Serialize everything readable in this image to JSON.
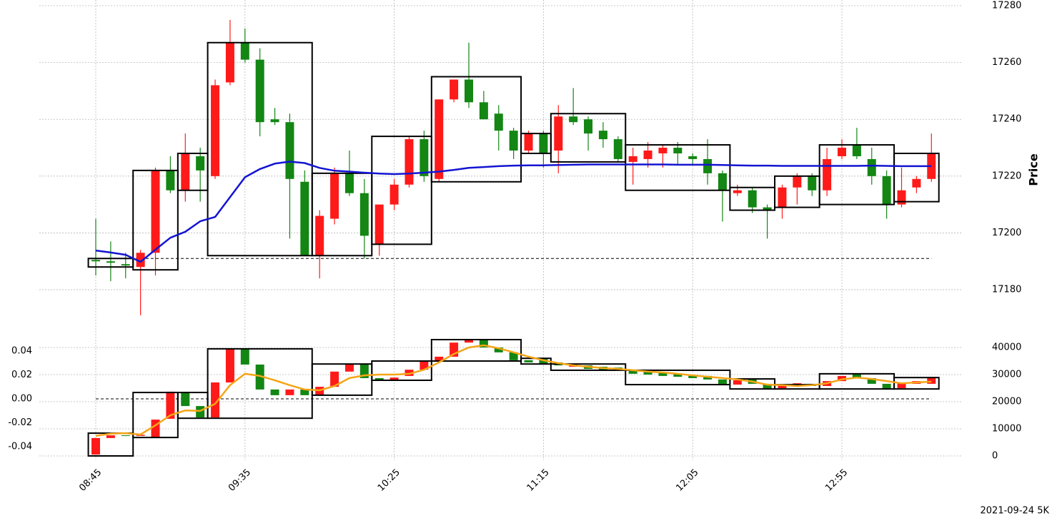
{
  "chart_data": [
    {
      "type": "candlestick",
      "ylabel": "Price",
      "up_color": "#ff1a1a",
      "down_color": "#138613",
      "box_color": "#000000",
      "ylim": [
        17167.7,
        17280
      ],
      "yticks": [
        17180,
        17200,
        17220,
        17240,
        17260,
        17280
      ],
      "grid": true,
      "open": [
        17190.5,
        17190,
        17189,
        17188,
        17193,
        17222,
        17215,
        17227,
        17220,
        17253,
        17267,
        17261,
        17240,
        17239,
        17218,
        17192,
        17205,
        17221,
        17214,
        17196,
        17210,
        17217,
        17233,
        17219,
        17247,
        17254,
        17246,
        17242,
        17236,
        17229,
        17235,
        17229,
        17241,
        17240,
        17236,
        17233,
        17225,
        17226,
        17228,
        17230,
        17227,
        17226,
        17221,
        17214,
        17215,
        17209,
        17209,
        17216,
        17220,
        17215,
        17227,
        17231,
        17226,
        17220,
        17210,
        17216,
        17219
      ],
      "high": [
        17205,
        17197,
        17193,
        17194,
        17223,
        17227,
        17235,
        17230,
        17254,
        17275,
        17272,
        17265,
        17244,
        17242,
        17222,
        17208,
        17223,
        17229,
        17219,
        17209,
        17219,
        17234,
        17236,
        17247,
        17254,
        17267,
        17250,
        17245,
        17237,
        17236,
        17236,
        17245,
        17251,
        17241,
        17239,
        17234,
        17230,
        17232,
        17231,
        17232,
        17228,
        17233,
        17222,
        17217,
        17216,
        17210,
        17217,
        17221,
        17221,
        17230,
        17233,
        17237,
        17230,
        17222,
        17223,
        17220,
        17235
      ],
      "low": [
        17185,
        17183,
        17184,
        17171,
        17185,
        17214,
        17211,
        17211,
        17219,
        17252,
        17260,
        17234,
        17238,
        17198,
        17192,
        17184,
        17203,
        17213,
        17191,
        17192,
        17208,
        17216,
        17218,
        17218,
        17246,
        17244,
        17240,
        17229,
        17226,
        17228,
        17223,
        17221,
        17238,
        17229,
        17230,
        17225,
        17217,
        17223,
        17223,
        17224,
        17224,
        17217,
        17204,
        17213,
        17207,
        17198,
        17205,
        17210,
        17213,
        17213,
        17226,
        17226,
        17217,
        17205,
        17209,
        17214,
        17218
      ],
      "close": [
        17190,
        17189.5,
        17188.5,
        17193,
        17222,
        17215,
        17228,
        17222,
        17252,
        17267,
        17261,
        17239,
        17239,
        17219,
        17192,
        17206,
        17221,
        17214,
        17199,
        17210,
        17217,
        17233,
        17220,
        17247,
        17254,
        17246,
        17240,
        17236,
        17229,
        17235,
        17228,
        17241,
        17239,
        17235,
        17233,
        17226,
        17227,
        17229,
        17230,
        17228,
        17226,
        17221,
        17215,
        17215,
        17209,
        17208,
        17216,
        17220,
        17215,
        17226,
        17230,
        17227,
        17220,
        17210,
        17215,
        17219,
        17228
      ],
      "lines": [
        {
          "color": "#1414d2",
          "values": [
            17193.8,
            17193.1,
            17192.3,
            17189.8,
            17194.1,
            17198.3,
            17200.4,
            17204.1,
            17205.6,
            17212.6,
            17219.6,
            17222.5,
            17224.4,
            17225.1,
            17224.6,
            17222.9,
            17221.9,
            17221.6,
            17221.2,
            17220.9,
            17220.7,
            17220.9,
            17221.2,
            17221.6,
            17222.2,
            17222.9,
            17223.2,
            17223.5,
            17223.7,
            17223.8,
            17223.8,
            17223.9,
            17224,
            17224.1,
            17224.1,
            17224.1,
            17224.1,
            17224.1,
            17224.1,
            17224,
            17224,
            17224,
            17223.9,
            17223.8,
            17223.7,
            17223.7,
            17223.6,
            17223.6,
            17223.6,
            17223.6,
            17223.6,
            17223.6,
            17223.7,
            17223.6,
            17223.5,
            17223.5,
            17223.5
          ]
        }
      ],
      "hline": 17191,
      "boxes": [
        {
          "start": 0,
          "end": 2,
          "low": 17188,
          "high": 17191
        },
        {
          "start": 3,
          "end": 5,
          "low": 17187,
          "high": 17222
        },
        {
          "start": 6,
          "end": 7,
          "low": 17215,
          "high": 17228
        },
        {
          "start": 8,
          "end": 14,
          "low": 17192,
          "high": 17267
        },
        {
          "start": 15,
          "end": 18,
          "low": 17192,
          "high": 17221
        },
        {
          "start": 19,
          "end": 22,
          "low": 17196,
          "high": 17234
        },
        {
          "start": 23,
          "end": 28,
          "low": 17218,
          "high": 17255
        },
        {
          "start": 29,
          "end": 30,
          "low": 17228,
          "high": 17235
        },
        {
          "start": 31,
          "end": 35,
          "low": 17225,
          "high": 17242
        },
        {
          "start": 36,
          "end": 42,
          "low": 17215,
          "high": 17231
        },
        {
          "start": 43,
          "end": 45,
          "low": 17208,
          "high": 17216
        },
        {
          "start": 46,
          "end": 48,
          "low": 17209,
          "high": 17220
        },
        {
          "start": 49,
          "end": 53,
          "low": 17210,
          "high": 17231
        },
        {
          "start": 54,
          "end": 56,
          "low": 17211,
          "high": 17228
        }
      ]
    },
    {
      "type": "candlestick",
      "up_color": "#ff1a1a",
      "down_color": "#138613",
      "box_color": "#000000",
      "categories": [
        "08:45",
        null,
        null,
        null,
        null,
        null,
        null,
        null,
        null,
        null,
        "09:35",
        null,
        null,
        null,
        null,
        null,
        null,
        null,
        null,
        null,
        "10:25",
        null,
        null,
        null,
        null,
        null,
        null,
        null,
        null,
        null,
        "11:15",
        null,
        null,
        null,
        null,
        null,
        null,
        null,
        null,
        null,
        "12:05",
        null,
        null,
        null,
        null,
        null,
        null,
        null,
        null,
        null,
        "12:55",
        null,
        null,
        null,
        null,
        null,
        null
      ],
      "ylim": [
        -1579,
        43158
      ],
      "yticks": [
        0,
        10000,
        20000,
        30000,
        40000
      ],
      "grid": true,
      "y2lim": [
        -0.0513,
        0.0501
      ],
      "y2ticks": [
        -0.04,
        -0.02,
        {
          "value": 0,
          "label": "0.00"
        },
        0.02,
        0.04
      ],
      "open": [
        500,
        6600,
        7600,
        7400,
        6800,
        13700,
        23400,
        18400,
        14200,
        27100,
        39500,
        33700,
        24500,
        22400,
        24500,
        22400,
        25500,
        31100,
        33900,
        28700,
        27900,
        29500,
        31800,
        35000,
        36600,
        41800,
        42900,
        40000,
        38200,
        35300,
        35800,
        34500,
        32900,
        33400,
        32900,
        32600,
        31800,
        31300,
        30800,
        30300,
        29500,
        29500,
        28200,
        26300,
        28200,
        26600,
        25000,
        26100,
        26600,
        25800,
        27600,
        30300,
        28700,
        26600,
        25000,
        26600,
        26600
      ],
      "close": [
        6600,
        7600,
        7400,
        7800,
        13400,
        23700,
        18400,
        14200,
        27100,
        39500,
        33700,
        24500,
        22400,
        24500,
        22400,
        25500,
        31100,
        33900,
        28700,
        27900,
        28900,
        31800,
        35000,
        36600,
        41800,
        42900,
        40000,
        38200,
        35300,
        34500,
        33900,
        33400,
        33900,
        32100,
        31800,
        31800,
        30300,
        30000,
        29500,
        29200,
        28700,
        28200,
        26300,
        27900,
        26600,
        24700,
        26100,
        26800,
        25800,
        27600,
        29500,
        28700,
        26600,
        24700,
        27100,
        27600,
        28700
      ],
      "lines": [
        {
          "color": "#f5a516",
          "values": [
            7400,
            8200,
            8400,
            7900,
            11300,
            15000,
            16800,
            16600,
            19200,
            26100,
            30300,
            29500,
            27900,
            26100,
            24500,
            24200,
            25800,
            28700,
            29700,
            30000,
            30000,
            30300,
            31800,
            34500,
            37600,
            40000,
            40800,
            39700,
            38200,
            36600,
            35300,
            34200,
            33400,
            32900,
            32400,
            32100,
            31600,
            31100,
            30800,
            30300,
            29700,
            29200,
            28700,
            28200,
            27400,
            26300,
            26100,
            25800,
            26100,
            26800,
            28200,
            28900,
            28400,
            27600,
            26800,
            27100,
            27400
          ]
        }
      ],
      "hline": 0,
      "hline_axis": "y2",
      "boxes": [
        {
          "start": 0,
          "end": 2,
          "low": 0,
          "high": 8400
        },
        {
          "start": 3,
          "end": 5,
          "low": 6800,
          "high": 23400
        },
        {
          "start": 6,
          "end": 7,
          "low": 13900,
          "high": 23400
        },
        {
          "start": 8,
          "end": 14,
          "low": 13900,
          "high": 39500
        },
        {
          "start": 15,
          "end": 18,
          "low": 22400,
          "high": 33900
        },
        {
          "start": 19,
          "end": 22,
          "low": 27900,
          "high": 35000
        },
        {
          "start": 23,
          "end": 28,
          "low": 35000,
          "high": 42900
        },
        {
          "start": 29,
          "end": 30,
          "low": 33900,
          "high": 36000
        },
        {
          "start": 31,
          "end": 35,
          "low": 31600,
          "high": 33900
        },
        {
          "start": 36,
          "end": 42,
          "low": 26300,
          "high": 31600
        },
        {
          "start": 43,
          "end": 45,
          "low": 24700,
          "high": 28400
        },
        {
          "start": 46,
          "end": 48,
          "low": 24700,
          "high": 26300
        },
        {
          "start": 49,
          "end": 53,
          "low": 24700,
          "high": 30300
        },
        {
          "start": 54,
          "end": 56,
          "low": 24700,
          "high": 28900
        }
      ]
    }
  ],
  "footer": "2021-09-24 5K"
}
